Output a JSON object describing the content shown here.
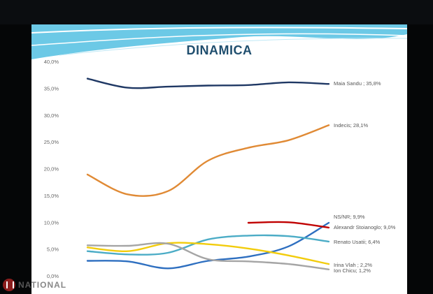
{
  "title": "DINAMICA",
  "brand": "NATIONAL",
  "colors": {
    "title": "#1f4e6e",
    "maia": "#1f3864",
    "indecis": "#e08a35",
    "nsnr": "#2e6fc0",
    "stoianoglo": "#c00000",
    "usatii": "#4bacc6",
    "vlah": "#f2cc0c",
    "chicu": "#a5a5a5"
  },
  "chart_data": {
    "type": "line",
    "x": [
      1,
      2,
      3,
      4,
      5,
      6,
      7
    ],
    "ylim": [
      0,
      40
    ],
    "yticks": [
      "0,0%",
      "5,0%",
      "10,0%",
      "15,0%",
      "20,0%",
      "25,0%",
      "30,0%",
      "35,0%",
      "40,0%"
    ],
    "grid": false,
    "series": [
      {
        "name": "Maia Sandu",
        "label": "Maia Sandu ; 35,8%",
        "color_key": "maia",
        "values": [
          36.8,
          35.1,
          35.3,
          35.5,
          35.6,
          36.1,
          35.8
        ]
      },
      {
        "name": "Indecis",
        "label": "Indecis; 28,1%",
        "color_key": "indecis",
        "values": [
          18.9,
          15.2,
          15.8,
          21.5,
          23.9,
          25.3,
          28.1
        ]
      },
      {
        "name": "NS/NR",
        "label": "NS/NR; 9,9%",
        "color_key": "nsnr",
        "values": [
          2.8,
          2.7,
          1.4,
          2.8,
          3.6,
          5.5,
          9.9
        ]
      },
      {
        "name": "Alexandr Stoianoglo",
        "label": "Alexandr Stoianoglo; 9,0%",
        "color_key": "stoianoglo",
        "values": [
          null,
          null,
          null,
          null,
          9.9,
          10.0,
          9.0
        ]
      },
      {
        "name": "Renato Usatii",
        "label": "Renato Usatii; 6,4%",
        "color_key": "usatii",
        "values": [
          4.6,
          4.0,
          4.3,
          6.8,
          7.5,
          7.4,
          6.4
        ]
      },
      {
        "name": "Irina Vlah",
        "label": "Irina Vlah ; 2,2%",
        "color_key": "vlah",
        "values": [
          5.3,
          4.6,
          6.1,
          5.9,
          5.1,
          3.8,
          2.2
        ]
      },
      {
        "name": "Ion Chicu",
        "label": "Ion Chicu; 1,2%",
        "color_key": "chicu",
        "values": [
          5.7,
          5.6,
          6.0,
          3.1,
          2.7,
          2.2,
          1.2
        ]
      }
    ]
  }
}
